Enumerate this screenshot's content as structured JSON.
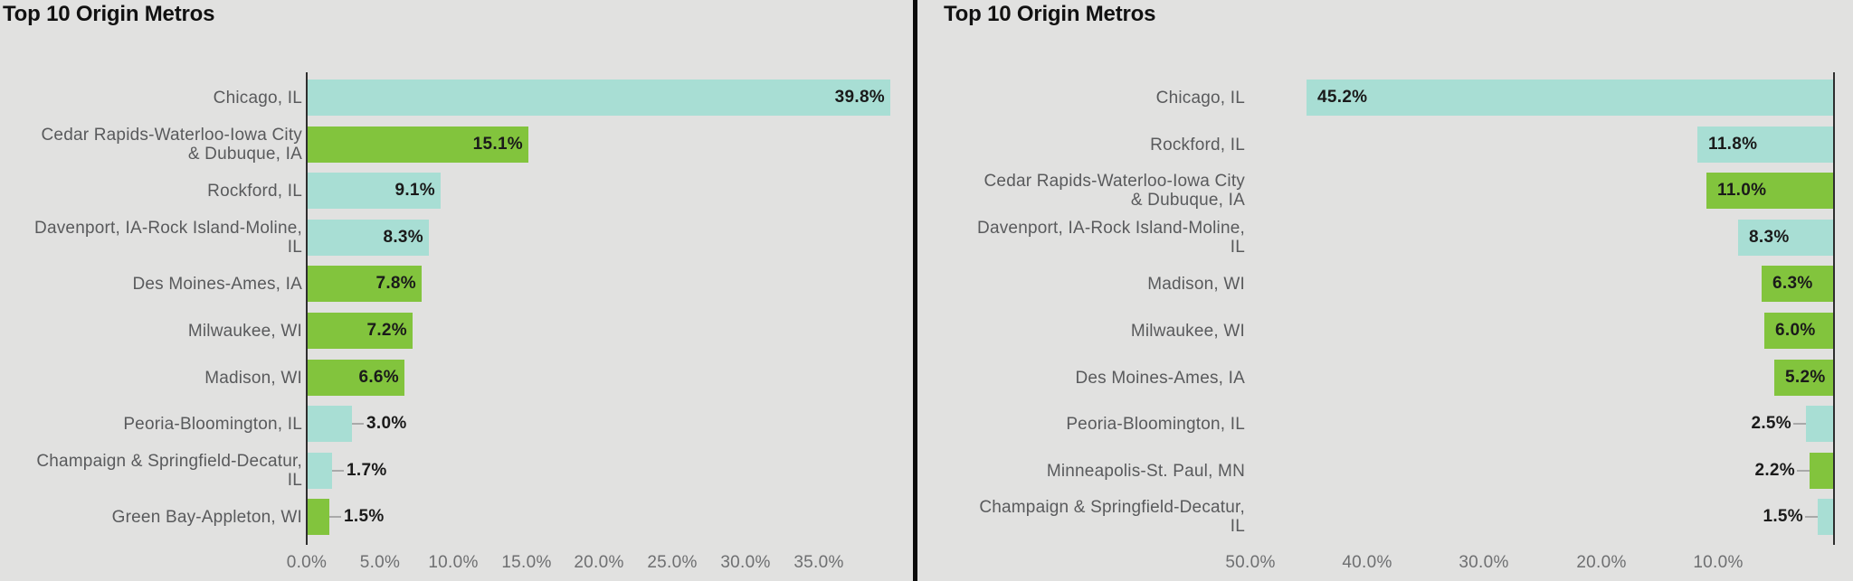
{
  "colors": {
    "teal": "#A8DED4",
    "green": "#82C43D",
    "background": "#E1E1E0",
    "divider": "#0B0B0B",
    "axis_line": "#2E2E2E",
    "category_text": "#595A5C",
    "tick_text": "#6E6F71",
    "value_text": "#1A1A1A",
    "title_text": "#111111",
    "leader_line": "#A9A9A9"
  },
  "chart_data": [
    {
      "type": "bar",
      "orientation": "horizontal",
      "title": "Top 10 Origin Metros",
      "bar_direction": "left-to-right",
      "value_unit": "%",
      "xlim": [
        0,
        41.5
      ],
      "grid": false,
      "legend": false,
      "axis_ticks": [
        {
          "label": "0.0%",
          "value": 0
        },
        {
          "label": "5.0%",
          "value": 5
        },
        {
          "label": "10.0%",
          "value": 10
        },
        {
          "label": "15.0%",
          "value": 15
        },
        {
          "label": "20.0%",
          "value": 20
        },
        {
          "label": "25.0%",
          "value": 25
        },
        {
          "label": "30.0%",
          "value": 30
        },
        {
          "label": "35.0%",
          "value": 35
        }
      ],
      "rows": [
        {
          "category": "Chicago, IL",
          "label_lines": [
            "Chicago, IL"
          ],
          "value": 39.8,
          "value_label": "39.8%",
          "color_key": "teal",
          "label_outside": false
        },
        {
          "category": "Cedar Rapids-Waterloo-Iowa City & Dubuque, IA",
          "label_lines": [
            "Cedar Rapids-Waterloo-Iowa City",
            "& Dubuque, IA"
          ],
          "value": 15.1,
          "value_label": "15.1%",
          "color_key": "green",
          "label_outside": false
        },
        {
          "category": "Rockford, IL",
          "label_lines": [
            "Rockford, IL"
          ],
          "value": 9.1,
          "value_label": "9.1%",
          "color_key": "teal",
          "label_outside": false
        },
        {
          "category": "Davenport, IA-Rock Island-Moline, IL",
          "label_lines": [
            "Davenport, IA-Rock Island-Moline,",
            "IL"
          ],
          "value": 8.3,
          "value_label": "8.3%",
          "color_key": "teal",
          "label_outside": false
        },
        {
          "category": "Des Moines-Ames, IA",
          "label_lines": [
            "Des Moines-Ames, IA"
          ],
          "value": 7.8,
          "value_label": "7.8%",
          "color_key": "green",
          "label_outside": false
        },
        {
          "category": "Milwaukee, WI",
          "label_lines": [
            "Milwaukee, WI"
          ],
          "value": 7.2,
          "value_label": "7.2%",
          "color_key": "green",
          "label_outside": false
        },
        {
          "category": "Madison, WI",
          "label_lines": [
            "Madison, WI"
          ],
          "value": 6.6,
          "value_label": "6.6%",
          "color_key": "green",
          "label_outside": false
        },
        {
          "category": "Peoria-Bloomington, IL",
          "label_lines": [
            "Peoria-Bloomington, IL"
          ],
          "value": 3.0,
          "value_label": "3.0%",
          "color_key": "teal",
          "label_outside": true
        },
        {
          "category": "Champaign & Springfield-Decatur, IL",
          "label_lines": [
            "Champaign & Springfield-Decatur,",
            "IL"
          ],
          "value": 1.7,
          "value_label": "1.7%",
          "color_key": "teal",
          "label_outside": true
        },
        {
          "category": "Green Bay-Appleton, WI",
          "label_lines": [
            "Green Bay-Appleton, WI"
          ],
          "value": 1.5,
          "value_label": "1.5%",
          "color_key": "green",
          "label_outside": true
        }
      ]
    },
    {
      "type": "bar",
      "orientation": "horizontal",
      "title": "Top 10 Origin Metros",
      "bar_direction": "right-to-left",
      "value_unit": "%",
      "xlim": [
        0,
        55
      ],
      "grid": false,
      "legend": false,
      "axis_ticks": [
        {
          "label": "50.0%",
          "value": 50
        },
        {
          "label": "40.0%",
          "value": 40
        },
        {
          "label": "30.0%",
          "value": 30
        },
        {
          "label": "20.0%",
          "value": 20
        },
        {
          "label": "10.0%",
          "value": 10
        }
      ],
      "rows": [
        {
          "category": "Chicago, IL",
          "label_lines": [
            "Chicago, IL"
          ],
          "value": 45.2,
          "value_label": "45.2%",
          "color_key": "teal",
          "label_outside": false
        },
        {
          "category": "Rockford, IL",
          "label_lines": [
            "Rockford, IL"
          ],
          "value": 11.8,
          "value_label": "11.8%",
          "color_key": "teal",
          "label_outside": false
        },
        {
          "category": "Cedar Rapids-Waterloo-Iowa City & Dubuque, IA",
          "label_lines": [
            "Cedar Rapids-Waterloo-Iowa City",
            "& Dubuque, IA"
          ],
          "value": 11.0,
          "value_label": "11.0%",
          "color_key": "green",
          "label_outside": false
        },
        {
          "category": "Davenport, IA-Rock Island-Moline, IL",
          "label_lines": [
            "Davenport, IA-Rock Island-Moline,",
            "IL"
          ],
          "value": 8.3,
          "value_label": "8.3%",
          "color_key": "teal",
          "label_outside": false
        },
        {
          "category": "Madison, WI",
          "label_lines": [
            "Madison, WI"
          ],
          "value": 6.3,
          "value_label": "6.3%",
          "color_key": "green",
          "label_outside": false
        },
        {
          "category": "Milwaukee, WI",
          "label_lines": [
            "Milwaukee, WI"
          ],
          "value": 6.0,
          "value_label": "6.0%",
          "color_key": "green",
          "label_outside": false
        },
        {
          "category": "Des Moines-Ames, IA",
          "label_lines": [
            "Des Moines-Ames, IA"
          ],
          "value": 5.2,
          "value_label": "5.2%",
          "color_key": "green",
          "label_outside": false
        },
        {
          "category": "Peoria-Bloomington, IL",
          "label_lines": [
            "Peoria-Bloomington, IL"
          ],
          "value": 2.5,
          "value_label": "2.5%",
          "color_key": "teal",
          "label_outside": true
        },
        {
          "category": "Minneapolis-St. Paul, MN",
          "label_lines": [
            "Minneapolis-St. Paul, MN"
          ],
          "value": 2.2,
          "value_label": "2.2%",
          "color_key": "green",
          "label_outside": true
        },
        {
          "category": "Champaign & Springfield-Decatur, IL",
          "label_lines": [
            "Champaign & Springfield-Decatur,",
            "IL"
          ],
          "value": 1.5,
          "value_label": "1.5%",
          "color_key": "teal",
          "label_outside": true
        }
      ]
    }
  ]
}
